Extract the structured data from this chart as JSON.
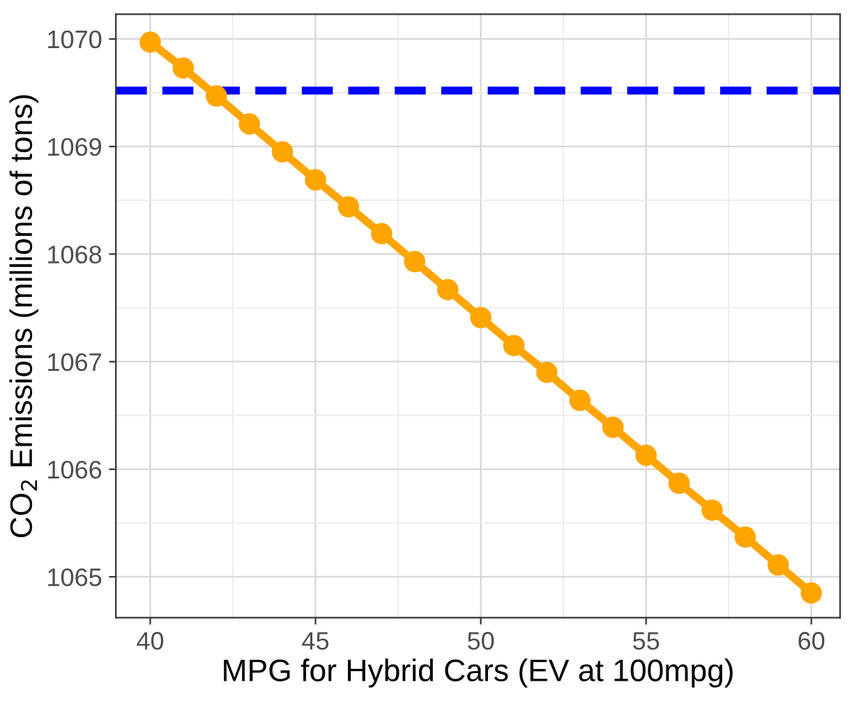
{
  "chart_data": {
    "type": "line",
    "xlabel": "MPG for Hybrid Cars (EV at 100mpg)",
    "ylabel": "CO$_{2}$ Emissions (millions of tons)",
    "x": [
      40,
      41,
      42,
      43,
      44,
      45,
      46,
      47,
      48,
      49,
      50,
      51,
      52,
      53,
      54,
      55,
      56,
      57,
      58,
      59,
      60
    ],
    "series": [
      {
        "color": "#ffa500",
        "values": [
          1069.97,
          1069.73,
          1069.47,
          1069.21,
          1068.95,
          1068.69,
          1068.44,
          1068.19,
          1067.93,
          1067.67,
          1067.41,
          1067.15,
          1066.9,
          1066.64,
          1066.39,
          1066.13,
          1065.87,
          1065.62,
          1065.37,
          1065.11,
          1064.85
        ]
      }
    ],
    "xlim": [
      38.96,
      60.87
    ],
    "ylim": [
      1064.62,
      1070.23
    ],
    "xticks": [
      40,
      45,
      50,
      55,
      60
    ],
    "yticks": [
      1065,
      1066,
      1067,
      1068,
      1069,
      1070
    ],
    "ref_lines": [
      {
        "axis": "y",
        "value": 1069.52,
        "color": "#0000ff",
        "line_style": "dashed"
      }
    ],
    "grid": true,
    "marker": "circle",
    "line_style": "solid"
  }
}
